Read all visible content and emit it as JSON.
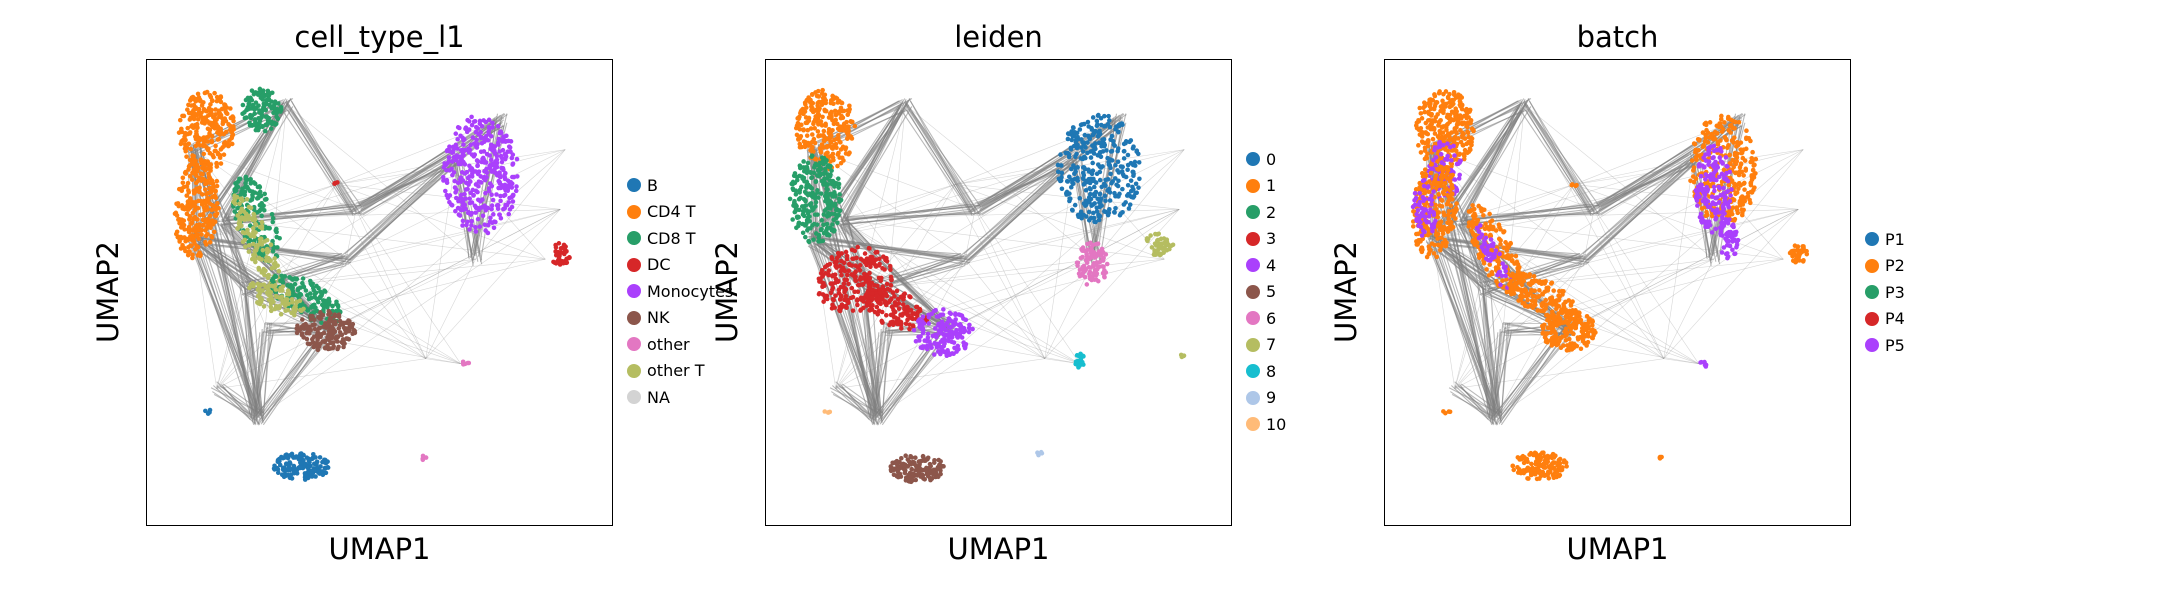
{
  "panels": [
    {
      "title": "cell_type_l1",
      "xlabel": "UMAP1",
      "ylabel": "UMAP2",
      "legend": [
        {
          "label": "B",
          "color": "#1f77b4"
        },
        {
          "label": "CD4 T",
          "color": "#ff7f0e"
        },
        {
          "label": "CD8 T",
          "color": "#279e68"
        },
        {
          "label": "DC",
          "color": "#d62728"
        },
        {
          "label": "Monocytes",
          "color": "#aa40fc"
        },
        {
          "label": "NK",
          "color": "#8c564b"
        },
        {
          "label": "other",
          "color": "#e377c2"
        },
        {
          "label": "other T",
          "color": "#b5bd61"
        },
        {
          "label": "NA",
          "color": "#d3d3d3"
        }
      ]
    },
    {
      "title": "leiden",
      "xlabel": "UMAP1",
      "ylabel": "UMAP2",
      "legend": [
        {
          "label": "0",
          "color": "#1f77b4"
        },
        {
          "label": "1",
          "color": "#ff7f0e"
        },
        {
          "label": "2",
          "color": "#279e68"
        },
        {
          "label": "3",
          "color": "#d62728"
        },
        {
          "label": "4",
          "color": "#aa40fc"
        },
        {
          "label": "5",
          "color": "#8c564b"
        },
        {
          "label": "6",
          "color": "#e377c2"
        },
        {
          "label": "7",
          "color": "#b5bd61"
        },
        {
          "label": "8",
          "color": "#17becf"
        },
        {
          "label": "9",
          "color": "#aec7e8"
        },
        {
          "label": "10",
          "color": "#ffbb78"
        }
      ]
    },
    {
      "title": "batch",
      "xlabel": "UMAP1",
      "ylabel": "UMAP2",
      "legend": [
        {
          "label": "P1",
          "color": "#1f77b4"
        },
        {
          "label": "P2",
          "color": "#ff7f0e"
        },
        {
          "label": "P3",
          "color": "#279e68"
        },
        {
          "label": "P4",
          "color": "#d62728"
        },
        {
          "label": "P5",
          "color": "#aa40fc"
        }
      ]
    }
  ],
  "chart_data": [
    {
      "type": "scatter",
      "title": "cell_type_l1",
      "xlabel": "UMAP1",
      "ylabel": "UMAP2",
      "grid": false,
      "ticks": false,
      "legend_position": "right",
      "overlay": "PAGA graph edges (gray)",
      "categories": [
        "B",
        "CD4 T",
        "CD8 T",
        "DC",
        "Monocytes",
        "NK",
        "other",
        "other T",
        "NA"
      ]
    },
    {
      "type": "scatter",
      "title": "leiden",
      "xlabel": "UMAP1",
      "ylabel": "UMAP2",
      "grid": false,
      "ticks": false,
      "legend_position": "right",
      "overlay": "PAGA graph edges (gray)",
      "categories": [
        "0",
        "1",
        "2",
        "3",
        "4",
        "5",
        "6",
        "7",
        "8",
        "9",
        "10"
      ]
    },
    {
      "type": "scatter",
      "title": "batch",
      "xlabel": "UMAP1",
      "ylabel": "UMAP2",
      "grid": false,
      "ticks": false,
      "legend_position": "right",
      "overlay": "PAGA graph edges (gray)",
      "categories": [
        "P1",
        "P2",
        "P3",
        "P4",
        "P5"
      ]
    }
  ]
}
